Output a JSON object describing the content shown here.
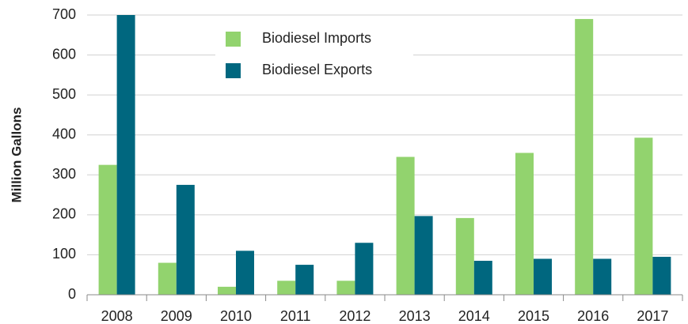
{
  "chart_data": {
    "type": "bar",
    "y_label": "Million Gallons",
    "categories": [
      "2008",
      "2009",
      "2010",
      "2011",
      "2012",
      "2013",
      "2014",
      "2015",
      "2016",
      "2017"
    ],
    "series": [
      {
        "name": "Biodiesel Imports",
        "color": "#92d36e",
        "values": [
          325,
          80,
          20,
          35,
          35,
          345,
          192,
          355,
          690,
          393
        ]
      },
      {
        "name": "Biodiesel Exports",
        "color": "#00677f",
        "values": [
          700,
          275,
          110,
          75,
          130,
          197,
          85,
          90,
          90,
          95
        ]
      }
    ],
    "ylim": [
      0,
      700
    ],
    "yticks": [
      0,
      100,
      200,
      300,
      400,
      500,
      600,
      700
    ],
    "grid": true
  }
}
